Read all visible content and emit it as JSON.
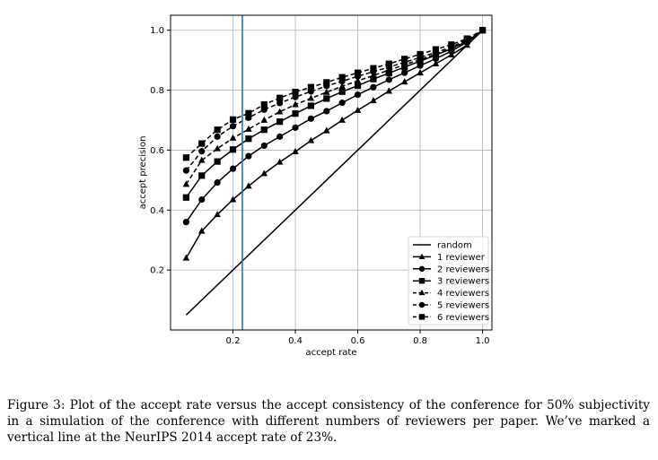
{
  "caption": "Figure 3: Plot of the accept rate versus the accept consistency of the conference for 50% subjectivity in a simulation of the conference with different numbers of reviewers per paper. We’ve marked a vertical line at the NeurIPS 2014 accept rate of 23%.",
  "chart_data": {
    "type": "line",
    "xlabel": "accept rate",
    "ylabel": "accept precision",
    "xlim": [
      0.0,
      1.03
    ],
    "ylim": [
      0.0,
      1.05
    ],
    "xticks": [
      0.2,
      0.4,
      0.6,
      0.8,
      1.0
    ],
    "yticks": [
      0.2,
      0.4,
      0.6,
      0.8,
      1.0
    ],
    "xtick_labels": [
      "0.2",
      "0.4",
      "0.6",
      "0.8",
      "1.0"
    ],
    "ytick_labels": [
      "0.2",
      "0.4",
      "0.6",
      "0.8",
      "1.0"
    ],
    "grid": true,
    "legend_position": "lower-right",
    "vertical_line": {
      "x": 0.23,
      "color": "#1f77b4"
    },
    "x": [
      0.05,
      0.1,
      0.15,
      0.2,
      0.25,
      0.3,
      0.35,
      0.4,
      0.45,
      0.5,
      0.55,
      0.6,
      0.65,
      0.7,
      0.75,
      0.8,
      0.85,
      0.9,
      0.95,
      1.0
    ],
    "series": [
      {
        "name": "random",
        "style": "solid",
        "marker": "none",
        "x": [
          0.05,
          1.0
        ],
        "values": [
          0.05,
          1.0
        ]
      },
      {
        "name": "1 reviewer",
        "style": "solid",
        "marker": "triangle",
        "values": [
          0.24,
          0.33,
          0.385,
          0.435,
          0.48,
          0.522,
          0.56,
          0.595,
          0.632,
          0.665,
          0.7,
          0.733,
          0.765,
          0.797,
          0.828,
          0.858,
          0.888,
          0.918,
          0.95,
          1.0
        ]
      },
      {
        "name": "2 reviewers",
        "style": "solid",
        "marker": "circle",
        "values": [
          0.36,
          0.435,
          0.492,
          0.538,
          0.58,
          0.615,
          0.645,
          0.675,
          0.705,
          0.73,
          0.758,
          0.785,
          0.81,
          0.835,
          0.858,
          0.882,
          0.905,
          0.93,
          0.96,
          1.0
        ]
      },
      {
        "name": "3 reviewers",
        "style": "solid",
        "marker": "square",
        "values": [
          0.442,
          0.515,
          0.562,
          0.602,
          0.638,
          0.668,
          0.695,
          0.722,
          0.748,
          0.772,
          0.795,
          0.815,
          0.837,
          0.857,
          0.877,
          0.897,
          0.917,
          0.938,
          0.963,
          1.0
        ]
      },
      {
        "name": "4 reviewers",
        "style": "dashed",
        "marker": "triangle",
        "values": [
          0.486,
          0.566,
          0.605,
          0.64,
          0.67,
          0.7,
          0.728,
          0.752,
          0.773,
          0.793,
          0.813,
          0.831,
          0.849,
          0.867,
          0.885,
          0.902,
          0.92,
          0.94,
          0.965,
          1.0
        ]
      },
      {
        "name": "5 reviewers",
        "style": "dashed",
        "marker": "circle",
        "values": [
          0.532,
          0.596,
          0.645,
          0.68,
          0.708,
          0.735,
          0.757,
          0.777,
          0.796,
          0.814,
          0.83,
          0.846,
          0.862,
          0.877,
          0.893,
          0.909,
          0.926,
          0.944,
          0.968,
          1.0
        ]
      },
      {
        "name": "6 reviewers",
        "style": "dashed",
        "marker": "square",
        "values": [
          0.575,
          0.622,
          0.668,
          0.702,
          0.723,
          0.752,
          0.774,
          0.794,
          0.81,
          0.826,
          0.843,
          0.858,
          0.873,
          0.888,
          0.904,
          0.92,
          0.936,
          0.952,
          0.972,
          1.0
        ]
      }
    ]
  }
}
